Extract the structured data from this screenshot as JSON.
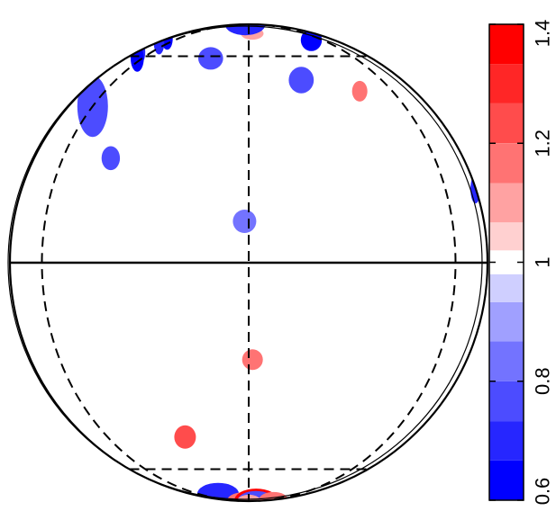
{
  "chart_data": {
    "type": "heatmap",
    "projection": "orthographic sphere",
    "title": "",
    "grid": true,
    "graticule": {
      "latitudes_deg": [
        -60,
        0,
        60
      ],
      "meridians_deg": [
        -60,
        0,
        60
      ]
    },
    "colorbar": {
      "orientation": "vertical",
      "placement": "right",
      "range": [
        0.6,
        1.4
      ],
      "ticks": [
        {
          "value": 0.6,
          "label": "0.6"
        },
        {
          "value": 0.8,
          "label": "0.8"
        },
        {
          "value": 1.0,
          "label": "1"
        },
        {
          "value": 1.2,
          "label": "1.2"
        },
        {
          "value": 1.4,
          "label": "1.4"
        }
      ],
      "bins": [
        {
          "min": 0.6,
          "max": 0.667,
          "color": "#0000ff"
        },
        {
          "min": 0.667,
          "max": 0.733,
          "color": "#2626ff"
        },
        {
          "min": 0.733,
          "max": 0.8,
          "color": "#4c4cff"
        },
        {
          "min": 0.8,
          "max": 0.867,
          "color": "#7373ff"
        },
        {
          "min": 0.867,
          "max": 0.933,
          "color": "#a0a0ff"
        },
        {
          "min": 0.933,
          "max": 0.98,
          "color": "#cfcfff"
        },
        {
          "min": 0.98,
          "max": 1.02,
          "color": "#ffffff"
        },
        {
          "min": 1.02,
          "max": 1.067,
          "color": "#ffd0d0"
        },
        {
          "min": 1.067,
          "max": 1.133,
          "color": "#ffa2a2"
        },
        {
          "min": 1.133,
          "max": 1.2,
          "color": "#ff7373"
        },
        {
          "min": 1.2,
          "max": 1.267,
          "color": "#ff4c4c"
        },
        {
          "min": 1.267,
          "max": 1.333,
          "color": "#ff2626"
        },
        {
          "min": 1.333,
          "max": 1.4,
          "color": "#ff0000"
        }
      ]
    },
    "spots": [
      {
        "lon": -87,
        "lat": 70,
        "value": 0.64
      },
      {
        "lon": -74,
        "lat": 67,
        "value": 0.68
      },
      {
        "lon": -75,
        "lat": 62,
        "value": 0.72
      },
      {
        "lon": -65,
        "lat": 59,
        "value": 0.66
      },
      {
        "lon": -70,
        "lat": 47,
        "value": 0.72
      },
      {
        "lon": -60,
        "lat": 41,
        "value": 0.76
      },
      {
        "lon": -40,
        "lat": 26,
        "value": 0.79
      },
      {
        "lon": -18,
        "lat": 59,
        "value": 0.75
      },
      {
        "lon": 3,
        "lat": 74,
        "value": 1.07
      },
      {
        "lon": 25,
        "lat": 92,
        "value": 0.7
      },
      {
        "lon": 47,
        "lat": 69,
        "value": 0.66
      },
      {
        "lon": 20,
        "lat": 50,
        "value": 0.74
      },
      {
        "lon": 42,
        "lat": 46,
        "value": 1.15
      },
      {
        "lon": 87,
        "lat": 18,
        "value": 0.7
      },
      {
        "lon": -1,
        "lat": 10,
        "value": 0.8
      },
      {
        "lon": 1,
        "lat": -24,
        "value": 1.15
      },
      {
        "lon": -23,
        "lat": -47,
        "value": 1.2
      },
      {
        "lon": -32,
        "lat": -76,
        "value": 0.68
      },
      {
        "lon": -28,
        "lat": -87,
        "value": 1.18
      },
      {
        "lon": 21,
        "lat": -85,
        "value": 1.34
      },
      {
        "lon": 35,
        "lat": -87,
        "value": 0.75
      },
      {
        "lon": 83,
        "lat": -84,
        "value": 1.15
      },
      {
        "lon": -2,
        "lat": -91,
        "value": 1.08
      }
    ]
  }
}
